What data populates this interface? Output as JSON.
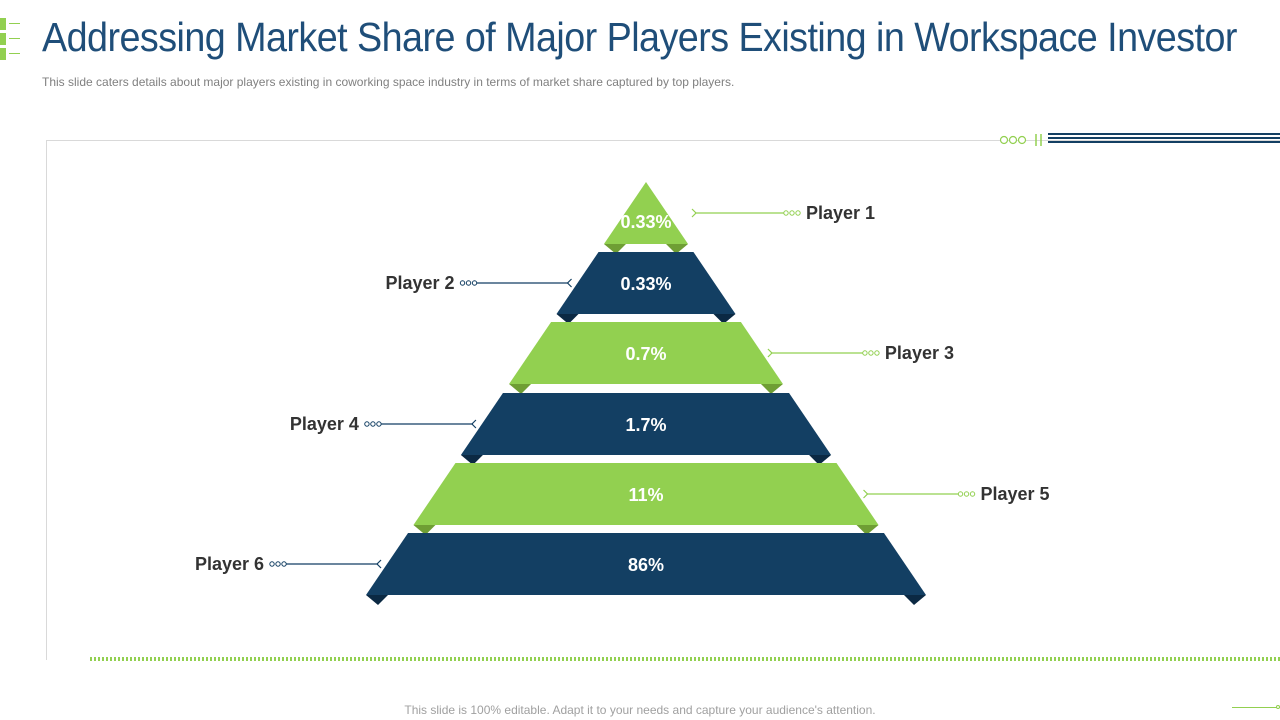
{
  "title": "Addressing Market Share of Major Players Existing in Workspace Investor",
  "subtitle": "This slide caters details about major players existing in coworking  space industry in terms of market share captured by top players.",
  "footer": "This slide is 100% editable. Adapt it to your needs and capture your audience's attention.",
  "colors": {
    "green": "#92d050",
    "navy": "#133f63",
    "title": "#1f4e79",
    "text": "#333333",
    "muted": "#808080"
  },
  "pyramid": [
    {
      "label": "Player 1",
      "value": "0.33%",
      "color": "green",
      "side": "right"
    },
    {
      "label": "Player 2",
      "value": "0.33%",
      "color": "navy",
      "side": "left"
    },
    {
      "label": "Player 3",
      "value": "0.7%",
      "color": "green",
      "side": "right"
    },
    {
      "label": "Player 4",
      "value": "1.7%",
      "color": "navy",
      "side": "left"
    },
    {
      "label": "Player 5",
      "value": "11%",
      "color": "green",
      "side": "right"
    },
    {
      "label": "Player 6",
      "value": "86%",
      "color": "navy",
      "side": "left"
    }
  ]
}
